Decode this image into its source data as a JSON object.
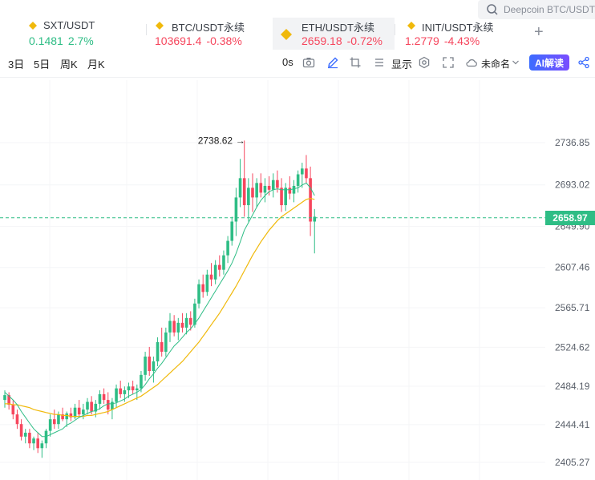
{
  "search": {
    "placeholder": "Deepcoin BTC/USDT"
  },
  "tabs": [
    {
      "name": "SXT/USDT",
      "price": "0.1481",
      "change": "2.7%",
      "trend": "up",
      "active": false
    },
    {
      "name": "BTC/USDT永续",
      "price": "103691.4",
      "change": "-0.38%",
      "trend": "down",
      "active": false
    },
    {
      "name": "ETH/USDT永续",
      "price": "2659.18",
      "change": "-0.72%",
      "trend": "down",
      "active": true
    },
    {
      "name": "INIT/USDT永续",
      "price": "1.2779",
      "change": "-4.43%",
      "trend": "down",
      "active": false
    }
  ],
  "toolbar": {
    "intervals": [
      "3日",
      "5日",
      "周K",
      "月K"
    ],
    "seconds_label": "0s",
    "display_label": "显示",
    "layout_name": "未命名",
    "ai_label": "AI解读"
  },
  "colors": {
    "up": "#2ebd85",
    "down": "#f6465d",
    "ma_fast": "#2ebd85",
    "ma_slow": "#f0b90b",
    "accent": "#3b6cff"
  },
  "chart_data": {
    "type": "candlestick",
    "y_ticks": [
      "2736.85",
      "2693.02",
      "2649.90",
      "2607.46",
      "2565.71",
      "2524.62",
      "2484.19",
      "2444.41",
      "2405.27"
    ],
    "ylim": [
      2400,
      2760
    ],
    "current_price": "2658.97",
    "high_annotation": "2738.62",
    "candles": [
      [
        2470,
        2480,
        2462,
        2475
      ],
      [
        2475,
        2478,
        2460,
        2465
      ],
      [
        2465,
        2470,
        2450,
        2455
      ],
      [
        2455,
        2460,
        2440,
        2445
      ],
      [
        2445,
        2450,
        2428,
        2432
      ],
      [
        2432,
        2440,
        2425,
        2436
      ],
      [
        2436,
        2440,
        2420,
        2425
      ],
      [
        2425,
        2432,
        2418,
        2430
      ],
      [
        2430,
        2436,
        2415,
        2420
      ],
      [
        2420,
        2428,
        2410,
        2425
      ],
      [
        2425,
        2440,
        2420,
        2438
      ],
      [
        2438,
        2455,
        2432,
        2450
      ],
      [
        2450,
        2460,
        2440,
        2445
      ],
      [
        2445,
        2458,
        2440,
        2455
      ],
      [
        2455,
        2462,
        2448,
        2450
      ],
      [
        2450,
        2458,
        2442,
        2456
      ],
      [
        2456,
        2462,
        2448,
        2452
      ],
      [
        2452,
        2466,
        2450,
        2462
      ],
      [
        2462,
        2470,
        2452,
        2455
      ],
      [
        2455,
        2466,
        2450,
        2460
      ],
      [
        2460,
        2472,
        2455,
        2468
      ],
      [
        2468,
        2474,
        2455,
        2458
      ],
      [
        2458,
        2470,
        2452,
        2466
      ],
      [
        2466,
        2480,
        2460,
        2476
      ],
      [
        2476,
        2482,
        2466,
        2470
      ],
      [
        2470,
        2478,
        2455,
        2460
      ],
      [
        2460,
        2472,
        2450,
        2468
      ],
      [
        2468,
        2486,
        2462,
        2482
      ],
      [
        2482,
        2490,
        2472,
        2476
      ],
      [
        2476,
        2484,
        2468,
        2480
      ],
      [
        2480,
        2488,
        2472,
        2484
      ],
      [
        2484,
        2490,
        2476,
        2480
      ],
      [
        2480,
        2486,
        2470,
        2482
      ],
      [
        2482,
        2500,
        2478,
        2496
      ],
      [
        2496,
        2520,
        2490,
        2515
      ],
      [
        2515,
        2525,
        2495,
        2500
      ],
      [
        2500,
        2515,
        2488,
        2510
      ],
      [
        2510,
        2535,
        2505,
        2530
      ],
      [
        2530,
        2545,
        2515,
        2520
      ],
      [
        2520,
        2545,
        2515,
        2540
      ],
      [
        2540,
        2560,
        2530,
        2552
      ],
      [
        2552,
        2558,
        2536,
        2540
      ],
      [
        2540,
        2555,
        2532,
        2550
      ],
      [
        2550,
        2560,
        2540,
        2545
      ],
      [
        2545,
        2560,
        2538,
        2555
      ],
      [
        2555,
        2562,
        2542,
        2548
      ],
      [
        2548,
        2575,
        2545,
        2570
      ],
      [
        2570,
        2595,
        2565,
        2590
      ],
      [
        2590,
        2600,
        2576,
        2582
      ],
      [
        2582,
        2605,
        2578,
        2600
      ],
      [
        2600,
        2612,
        2588,
        2595
      ],
      [
        2595,
        2615,
        2590,
        2610
      ],
      [
        2610,
        2620,
        2598,
        2605
      ],
      [
        2605,
        2625,
        2600,
        2620
      ],
      [
        2620,
        2640,
        2612,
        2635
      ],
      [
        2635,
        2660,
        2630,
        2655
      ],
      [
        2655,
        2690,
        2640,
        2680
      ],
      [
        2680,
        2720,
        2670,
        2700
      ],
      [
        2700,
        2739,
        2660,
        2672
      ],
      [
        2672,
        2700,
        2655,
        2690
      ],
      [
        2690,
        2705,
        2665,
        2680
      ],
      [
        2680,
        2700,
        2670,
        2695
      ],
      [
        2695,
        2705,
        2680,
        2685
      ],
      [
        2685,
        2700,
        2675,
        2692
      ],
      [
        2692,
        2702,
        2682,
        2688
      ],
      [
        2688,
        2705,
        2680,
        2698
      ],
      [
        2698,
        2708,
        2685,
        2690
      ],
      [
        2690,
        2700,
        2665,
        2672
      ],
      [
        2672,
        2695,
        2666,
        2690
      ],
      [
        2690,
        2702,
        2678,
        2684
      ],
      [
        2684,
        2698,
        2675,
        2692
      ],
      [
        2692,
        2708,
        2685,
        2704
      ],
      [
        2704,
        2716,
        2690,
        2710
      ],
      [
        2710,
        2724,
        2695,
        2700
      ],
      [
        2700,
        2712,
        2640,
        2655
      ],
      [
        2655,
        2668,
        2622,
        2660
      ]
    ],
    "ma_fast": [
      2478,
      2474,
      2470,
      2465,
      2458,
      2452,
      2446,
      2440,
      2436,
      2432,
      2432,
      2434,
      2436,
      2438,
      2440,
      2444,
      2446,
      2449,
      2452,
      2454,
      2456,
      2458,
      2459,
      2461,
      2464,
      2466,
      2466,
      2467,
      2469,
      2471,
      2474,
      2476,
      2478,
      2481,
      2486,
      2492,
      2497,
      2503,
      2508,
      2514,
      2520,
      2526,
      2530,
      2535,
      2540,
      2544,
      2549,
      2555,
      2562,
      2569,
      2576,
      2583,
      2590,
      2597,
      2604,
      2612,
      2622,
      2634,
      2646,
      2654,
      2662,
      2670,
      2677,
      2682,
      2686,
      2688,
      2689,
      2688,
      2688,
      2688,
      2689,
      2690,
      2693,
      2695,
      2690,
      2682
    ],
    "ma_slow": [
      2466,
      2466,
      2465,
      2465,
      2464,
      2463,
      2462,
      2460,
      2459,
      2458,
      2457,
      2456,
      2455,
      2455,
      2454,
      2454,
      2453,
      2453,
      2453,
      2453,
      2454,
      2454,
      2455,
      2456,
      2457,
      2458,
      2460,
      2462,
      2464,
      2466,
      2468,
      2470,
      2472,
      2474,
      2477,
      2480,
      2483,
      2486,
      2490,
      2494,
      2498,
      2502,
      2506,
      2510,
      2515,
      2520,
      2525,
      2530,
      2536,
      2542,
      2548,
      2554,
      2560,
      2567,
      2574,
      2581,
      2588,
      2596,
      2604,
      2612,
      2620,
      2627,
      2634,
      2640,
      2646,
      2651,
      2656,
      2660,
      2663,
      2666,
      2669,
      2672,
      2675,
      2678,
      2679,
      2678
    ]
  }
}
